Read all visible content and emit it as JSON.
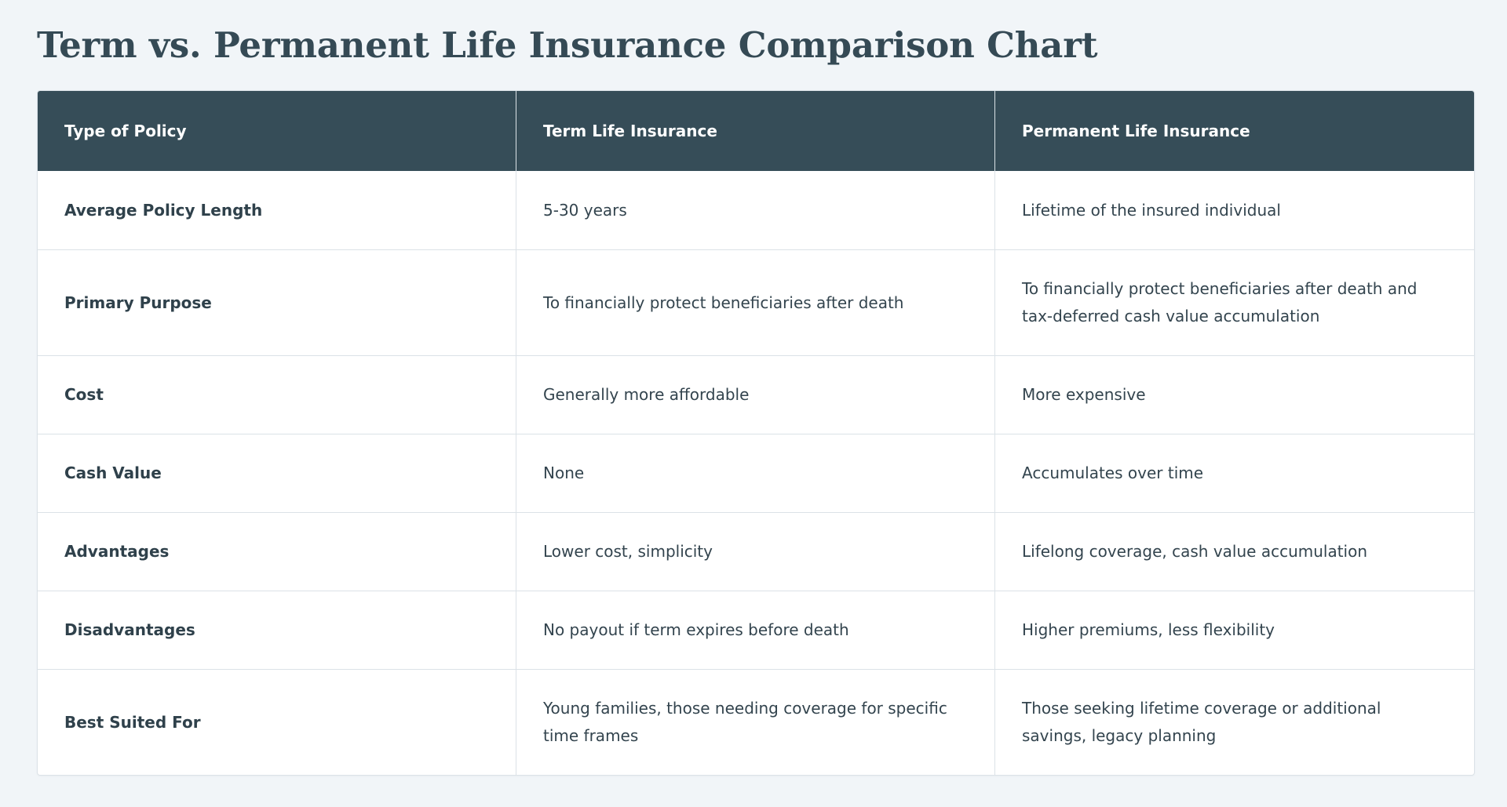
{
  "page": {
    "title": "Term vs. Permanent Life Insurance Comparison Chart"
  },
  "table": {
    "headers": [
      "Type of Policy",
      "Term Life Insurance",
      "Permanent Life Insurance"
    ],
    "rows": [
      [
        "Average Policy Length",
        "5-30 years",
        "Lifetime of the insured individual"
      ],
      [
        "Primary Purpose",
        "To financially protect beneficiaries after death",
        "To financially protect beneficiaries after death and tax-deferred cash value accumulation"
      ],
      [
        "Cost",
        "Generally more affordable",
        "More expensive"
      ],
      [
        "Cash Value",
        "None",
        "Accumulates over time"
      ],
      [
        "Advantages",
        "Lower cost, simplicity",
        "Lifelong coverage, cash value accumulation"
      ],
      [
        "Disadvantages",
        "No payout if term expires before death",
        "Higher premiums, less flexibility"
      ],
      [
        "Best Suited For",
        "Young families, those needing coverage for specific time frames",
        "Those seeking lifetime coverage or additional savings, legacy planning"
      ]
    ]
  },
  "colors": {
    "background": "#f1f5f8",
    "header_bg": "#364d58",
    "header_text": "#ffffff",
    "title_text": "#354a55",
    "border": "#dbe2e7"
  }
}
